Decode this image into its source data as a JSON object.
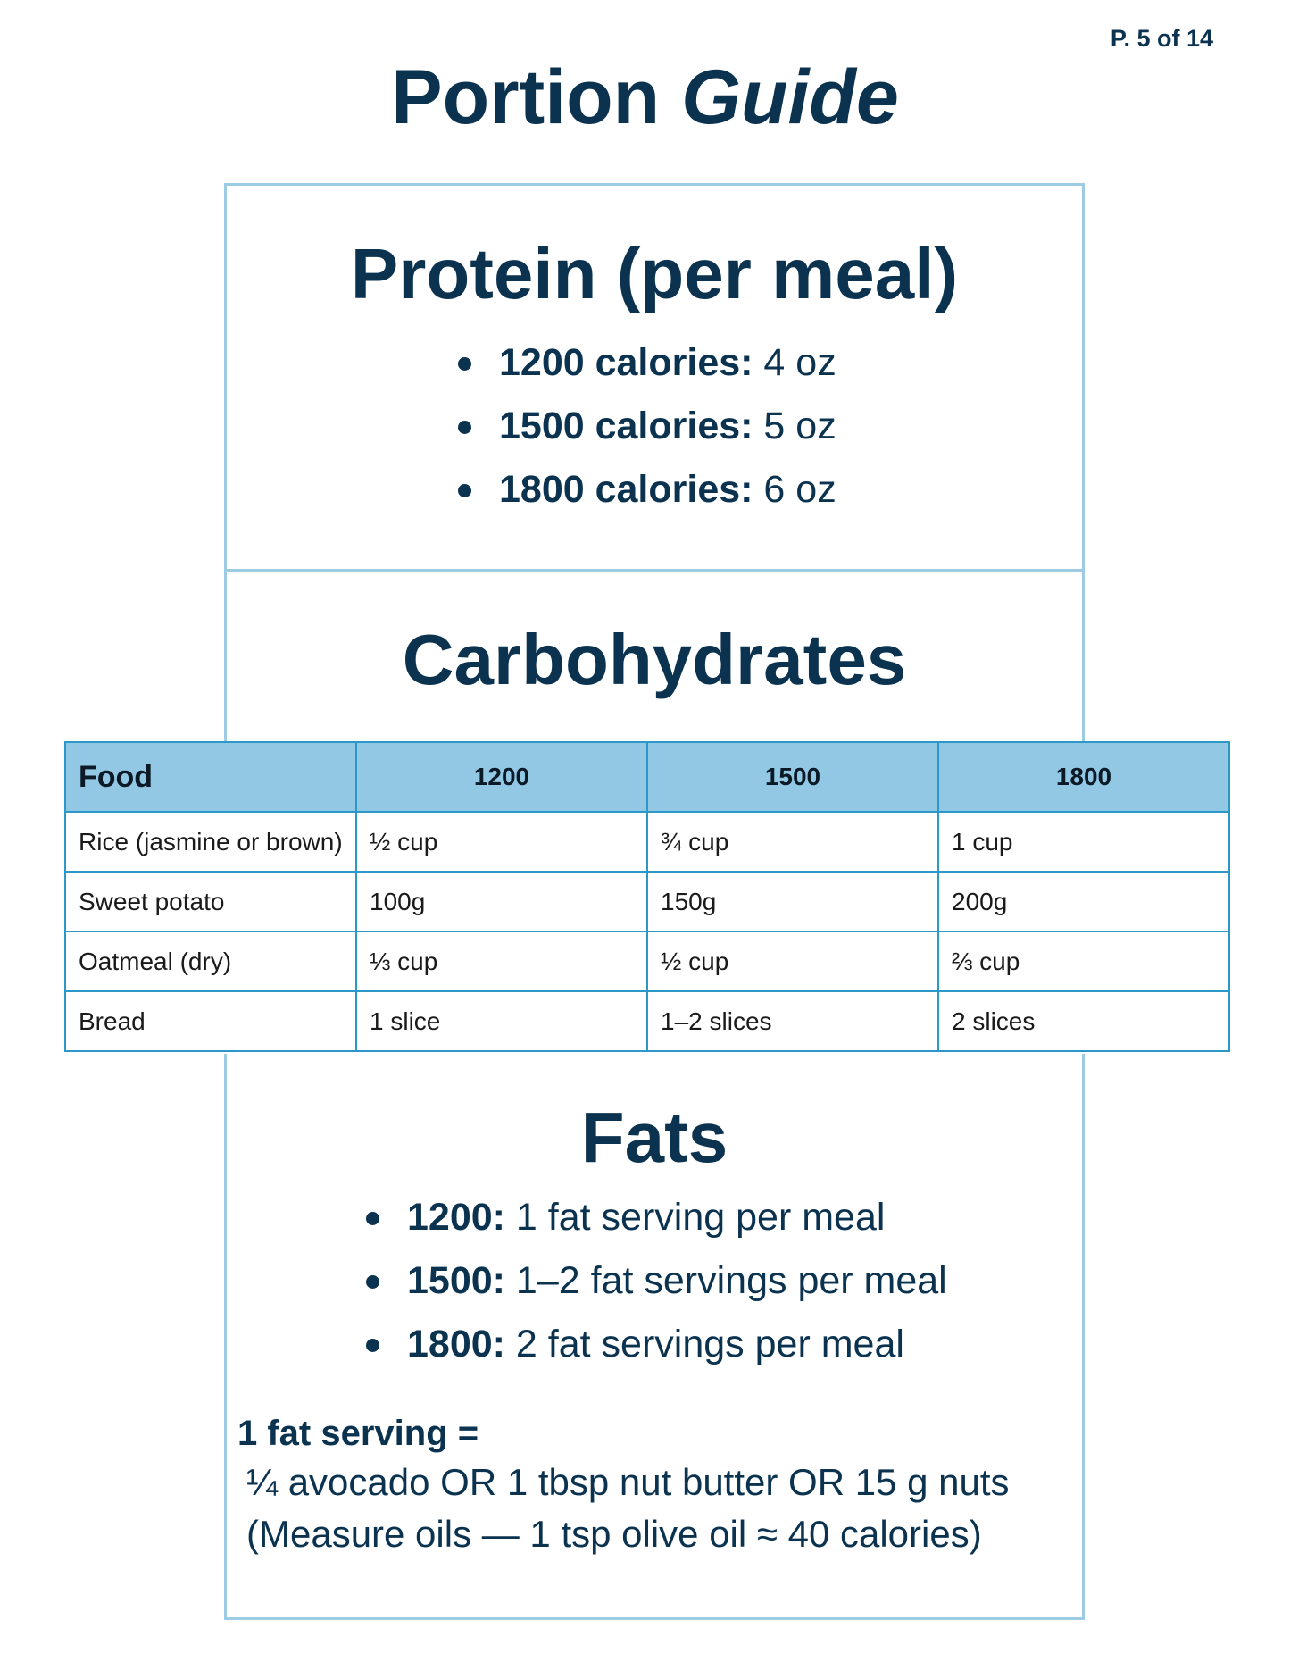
{
  "page_number": "P. 5 of 14",
  "title": {
    "main": "Portion",
    "italic": "Guide"
  },
  "protein": {
    "heading": "Protein (per meal)",
    "items": [
      {
        "label": "1200 calories:",
        "value": " 4 oz"
      },
      {
        "label": "1500 calories:",
        "value": " 5 oz"
      },
      {
        "label": "1800 calories:",
        "value": " 6 oz"
      }
    ]
  },
  "carbs": {
    "heading": "Carbohydrates",
    "columns": [
      "Food",
      "1200",
      "1500",
      "1800"
    ],
    "rows": [
      [
        "Rice (jasmine or brown)",
        "½ cup",
        "¾ cup",
        "1 cup"
      ],
      [
        "Sweet potato",
        "100g",
        "150g",
        "200g"
      ],
      [
        "Oatmeal (dry)",
        "⅓ cup",
        "½ cup",
        "⅔ cup"
      ],
      [
        "Bread",
        "1 slice",
        "1–2 slices",
        "2 slices"
      ]
    ]
  },
  "fats": {
    "heading": "Fats",
    "items": [
      {
        "label": "1200:",
        "value": " 1 fat serving per meal"
      },
      {
        "label": "1500:",
        "value": " 1–2 fat servings per meal"
      },
      {
        "label": "1800:",
        "value": " 2 fat servings per meal"
      }
    ],
    "serving_title": "1 fat serving =",
    "serving_line1": "¼ avocado OR 1 tbsp nut butter OR 15 g nuts",
    "serving_line2": "(Measure oils — 1 tsp olive oil ≈ 40 calories)"
  }
}
